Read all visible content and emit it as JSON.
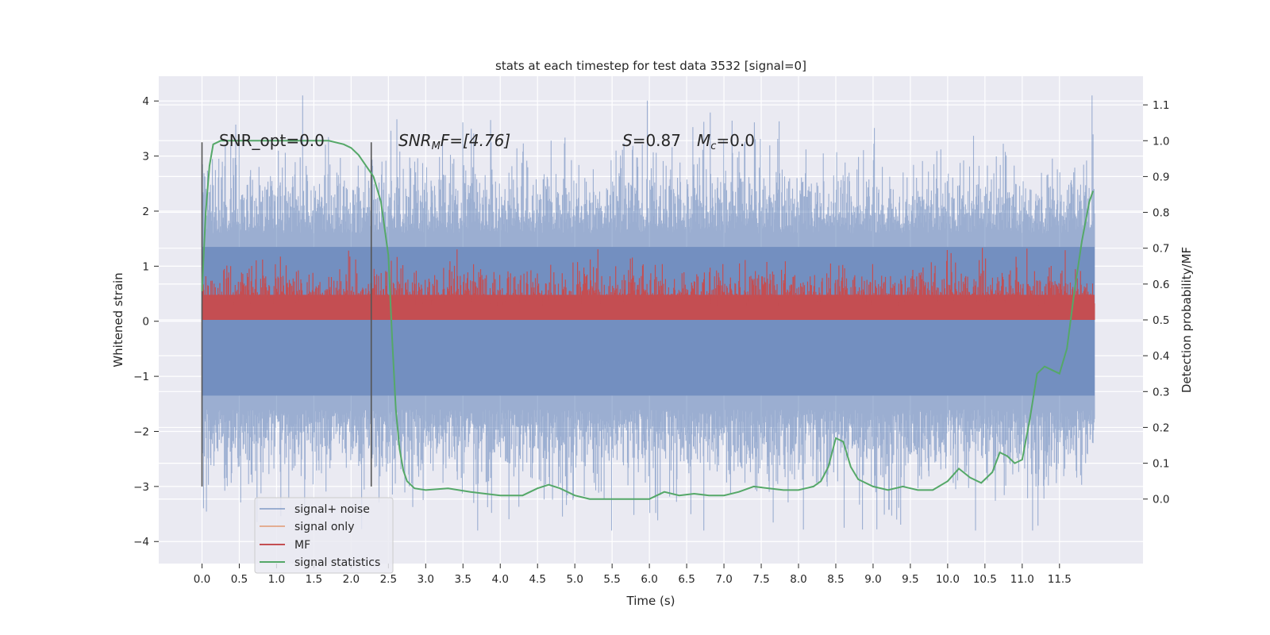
{
  "chart_data": {
    "type": "line",
    "title": "stats at each timestep for test data 3532 [signal=0]",
    "xlabel": "Time (s)",
    "ylabel": "Whitened strain",
    "y2label": "Detection probability/MF",
    "xlim": [
      -0.58,
      12.62
    ],
    "ylim": [
      -4.4,
      4.45
    ],
    "y2lim": [
      -0.18,
      1.18
    ],
    "xticks": [
      "0.0",
      "0.5",
      "1.0",
      "1.5",
      "2.0",
      "2.5",
      "3.0",
      "3.5",
      "4.0",
      "4.5",
      "5.0",
      "5.5",
      "6.0",
      "6.5",
      "7.0",
      "7.5",
      "8.0",
      "8.5",
      "9.0",
      "9.5",
      "10.0",
      "10.5",
      "11.0",
      "11.5"
    ],
    "yticks": [
      "4",
      "3",
      "2",
      "1",
      "0",
      "−1",
      "−2",
      "−3",
      "−4"
    ],
    "y2ticks": [
      "1.1",
      "1.0",
      "0.9",
      "0.8",
      "0.7",
      "0.6",
      "0.5",
      "0.4",
      "0.3",
      "0.2",
      "0.1",
      "0.0"
    ],
    "grid": true,
    "legend_placement": "lower-left",
    "annotations": {
      "snr_opt": "SNR_opt=0.0",
      "snr_mf_main": "SNR",
      "snr_mf_sub": "M",
      "snr_mf_rest": "F=[4.76]",
      "s_label": "S",
      "s_value": "=0.87",
      "mc_main": "M",
      "mc_sub": "c",
      "mc_value": "=0.0"
    },
    "vlines": [
      0.0,
      2.27
    ],
    "series": [
      {
        "name": "signal+ noise",
        "color": "#4c72b0",
        "note_range": [
          -3.8,
          4.1
        ]
      },
      {
        "name": "signal only",
        "color": "#dd8452"
      },
      {
        "name": "MF",
        "color": "#c44e52"
      },
      {
        "name": "signal statistics",
        "color": "#55a868",
        "x": [
          0.0,
          0.05,
          0.1,
          0.15,
          0.25,
          0.5,
          1.0,
          1.5,
          1.7,
          1.9,
          2.0,
          2.1,
          2.2,
          2.3,
          2.4,
          2.5,
          2.55,
          2.6,
          2.65,
          2.7,
          2.75,
          2.85,
          3.0,
          3.3,
          3.6,
          4.0,
          4.3,
          4.5,
          4.65,
          4.8,
          5.0,
          5.2,
          5.5,
          6.0,
          6.1,
          6.2,
          6.4,
          6.6,
          6.8,
          7.0,
          7.2,
          7.4,
          7.6,
          7.8,
          8.0,
          8.2,
          8.3,
          8.4,
          8.5,
          8.6,
          8.7,
          8.8,
          9.0,
          9.2,
          9.4,
          9.5,
          9.6,
          9.8,
          10.0,
          10.15,
          10.3,
          10.45,
          10.6,
          10.7,
          10.8,
          10.9,
          11.0,
          11.1,
          11.2,
          11.3,
          11.4,
          11.5,
          11.6,
          11.7,
          11.8,
          11.9,
          11.95
        ],
        "values": [
          0.58,
          0.8,
          0.93,
          0.99,
          1.0,
          1.0,
          1.0,
          1.0,
          1.0,
          0.99,
          0.98,
          0.96,
          0.93,
          0.9,
          0.83,
          0.68,
          0.45,
          0.25,
          0.14,
          0.08,
          0.05,
          0.03,
          0.025,
          0.03,
          0.02,
          0.01,
          0.01,
          0.03,
          0.04,
          0.03,
          0.01,
          0.0,
          0.0,
          0.0,
          0.01,
          0.02,
          0.01,
          0.015,
          0.01,
          0.01,
          0.02,
          0.035,
          0.03,
          0.025,
          0.025,
          0.035,
          0.05,
          0.09,
          0.17,
          0.16,
          0.09,
          0.055,
          0.035,
          0.025,
          0.035,
          0.03,
          0.025,
          0.025,
          0.05,
          0.085,
          0.06,
          0.045,
          0.075,
          0.13,
          0.12,
          0.1,
          0.11,
          0.22,
          0.35,
          0.37,
          0.36,
          0.35,
          0.42,
          0.58,
          0.72,
          0.83,
          0.86
        ]
      }
    ]
  }
}
